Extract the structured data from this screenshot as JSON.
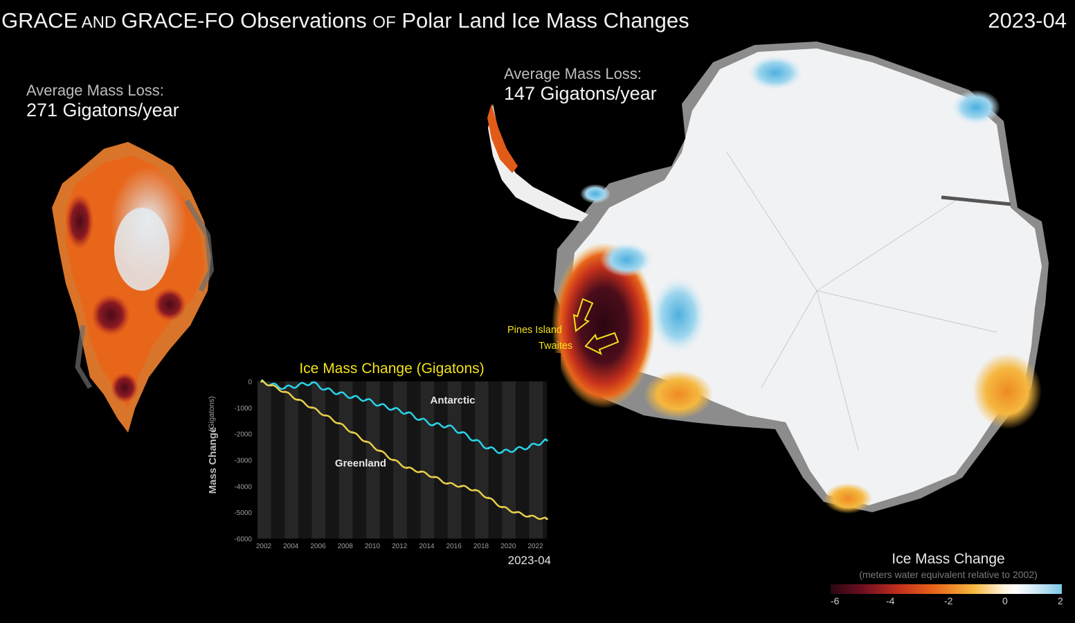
{
  "header": {
    "title_part1": "GRACE",
    "title_part2": " AND ",
    "title_part3": "GRACE-FO Observations ",
    "title_part4": "OF",
    "title_part5": " Polar Land Ice Mass Changes",
    "date": "2023-04"
  },
  "greenland": {
    "loss_label": "Average Mass Loss:",
    "loss_value": "271 Gigatons/year"
  },
  "antarctica": {
    "loss_label": "Average Mass Loss:",
    "loss_value": "147 Gigatons/year",
    "annotation_pines": "Pines Island",
    "annotation_twaites": "Twaites"
  },
  "legend": {
    "title": "Ice Mass Change",
    "subtitle": "(meters water equivalent relative to 2002)",
    "ticks": [
      "-6",
      "-4",
      "-2",
      "0",
      "2"
    ],
    "range": [
      -6,
      2
    ]
  },
  "colors": {
    "background": "#000000",
    "antarctic_line": "#29d3e8",
    "greenland_line": "#e8cf4a",
    "annotation_yellow": "#f2e21a"
  },
  "chart_data": {
    "type": "line",
    "title": "Ice Mass Change (Gigatons)",
    "xlabel": "",
    "ylabel": "Mass Change",
    "ylabel_unit": "(Gigatons)",
    "date_label": "2023-04",
    "xlim": [
      2002,
      2023.3
    ],
    "ylim": [
      -6000,
      0
    ],
    "xticks": [
      "2002",
      "2004",
      "2006",
      "2008",
      "2010",
      "2012",
      "2014",
      "2016",
      "2018",
      "2020",
      "2022"
    ],
    "yticks": [
      "0",
      "-1000",
      "-2000",
      "-3000",
      "-4000",
      "-5000",
      "-6000"
    ],
    "series": [
      {
        "name": "Antarctic",
        "x": [
          2002.3,
          2003,
          2004,
          2005,
          2006,
          2007,
          2008,
          2009,
          2010,
          2011,
          2012,
          2013,
          2014,
          2015,
          2016,
          2017,
          2018,
          2019,
          2020,
          2021,
          2022,
          2023.3
        ],
        "values": [
          0,
          -120,
          -250,
          -150,
          -50,
          -300,
          -450,
          -600,
          -700,
          -900,
          -1050,
          -1200,
          -1450,
          -1650,
          -1700,
          -1950,
          -2250,
          -2550,
          -2700,
          -2600,
          -2500,
          -2250
        ]
      },
      {
        "name": "Greenland",
        "x": [
          2002.3,
          2003,
          2004,
          2005,
          2006,
          2007,
          2008,
          2009,
          2010,
          2011,
          2012,
          2013,
          2014,
          2015,
          2016,
          2017,
          2018,
          2019,
          2020,
          2021,
          2022,
          2023.3
        ],
        "values": [
          0,
          -150,
          -400,
          -700,
          -1000,
          -1300,
          -1600,
          -1950,
          -2300,
          -2650,
          -3000,
          -3300,
          -3450,
          -3650,
          -3900,
          -4000,
          -4150,
          -4450,
          -4800,
          -5000,
          -5150,
          -5250
        ]
      }
    ]
  }
}
